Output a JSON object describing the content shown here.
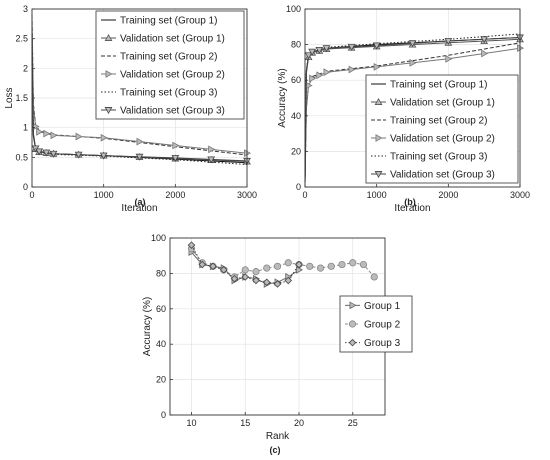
{
  "chart_data": [
    {
      "id": "a",
      "type": "line",
      "caption": "(a)",
      "xlabel": "Iteration",
      "ylabel": "Loss",
      "xlim": [
        0,
        3000
      ],
      "ylim": [
        0,
        3
      ],
      "xticks": [
        0,
        1000,
        2000,
        3000
      ],
      "yticks": [
        0,
        0.5,
        1,
        1.5,
        2,
        2.5,
        3
      ],
      "grid": true,
      "legend": "top-right",
      "series": [
        {
          "name": "Training set (Group 1)",
          "style": "solid",
          "marker": "none",
          "x": [
            0,
            20,
            50,
            100,
            300,
            1000,
            2000,
            3000
          ],
          "y": [
            2.6,
            0.9,
            0.65,
            0.6,
            0.56,
            0.53,
            0.47,
            0.41
          ]
        },
        {
          "name": "Validation set (Group 1)",
          "style": "solid",
          "marker": "triangle-up",
          "x": [
            0,
            20,
            50,
            100,
            300,
            1000,
            2000,
            3000
          ],
          "y": [
            2.5,
            0.85,
            0.64,
            0.59,
            0.56,
            0.53,
            0.48,
            0.43
          ]
        },
        {
          "name": "Training set (Group 2)",
          "style": "dashed",
          "marker": "none",
          "x": [
            0,
            20,
            50,
            100,
            300,
            1000,
            2000,
            3000
          ],
          "y": [
            2.9,
            1.4,
            1.05,
            0.95,
            0.88,
            0.82,
            0.68,
            0.54
          ]
        },
        {
          "name": "Validation set (Group 2)",
          "style": "solid",
          "marker": "triangle-right",
          "x": [
            0,
            20,
            50,
            100,
            300,
            1000,
            2000,
            3000
          ],
          "y": [
            2.8,
            1.35,
            1.02,
            0.93,
            0.87,
            0.83,
            0.7,
            0.57
          ]
        },
        {
          "name": "Training set (Group 3)",
          "style": "dotted",
          "marker": "none",
          "x": [
            0,
            20,
            50,
            100,
            300,
            1000,
            2000,
            3000
          ],
          "y": [
            2.55,
            0.88,
            0.64,
            0.59,
            0.55,
            0.52,
            0.46,
            0.38
          ]
        },
        {
          "name": "Validation set (Group 3)",
          "style": "solid",
          "marker": "triangle-down",
          "x": [
            0,
            20,
            50,
            100,
            300,
            1000,
            2000,
            3000
          ],
          "y": [
            2.45,
            0.86,
            0.65,
            0.6,
            0.56,
            0.53,
            0.49,
            0.44
          ]
        }
      ]
    },
    {
      "id": "b",
      "type": "line",
      "caption": "(b)",
      "xlabel": "Iteration",
      "ylabel": "Accuracy (%)",
      "xlim": [
        0,
        3000
      ],
      "ylim": [
        0,
        100
      ],
      "xticks": [
        0,
        1000,
        2000,
        3000
      ],
      "yticks": [
        0,
        20,
        40,
        60,
        80,
        100
      ],
      "grid": true,
      "legend": "bottom-right",
      "series": [
        {
          "name": "Training set (Group 1)",
          "style": "solid",
          "marker": "none",
          "x": [
            0,
            20,
            50,
            100,
            300,
            1000,
            2000,
            3000
          ],
          "y": [
            2,
            65,
            74,
            76,
            78,
            80,
            82,
            84
          ]
        },
        {
          "name": "Validation set (Group 1)",
          "style": "solid",
          "marker": "triangle-up",
          "x": [
            0,
            20,
            50,
            100,
            300,
            1000,
            2000,
            3000
          ],
          "y": [
            2,
            64,
            73,
            75.5,
            77.5,
            79,
            81,
            83
          ]
        },
        {
          "name": "Training set (Group 2)",
          "style": "dashed",
          "marker": "none",
          "x": [
            0,
            20,
            50,
            100,
            300,
            1000,
            2000,
            3000
          ],
          "y": [
            2,
            45,
            58,
            62,
            65,
            68,
            74,
            81
          ]
        },
        {
          "name": "Validation set (Group 2)",
          "style": "solid",
          "marker": "triangle-right",
          "x": [
            0,
            20,
            50,
            100,
            300,
            1000,
            2000,
            3000
          ],
          "y": [
            2,
            44,
            57,
            61,
            64.5,
            67.5,
            72,
            78
          ]
        },
        {
          "name": "Training set (Group 3)",
          "style": "dotted",
          "marker": "none",
          "x": [
            0,
            20,
            50,
            100,
            300,
            1000,
            2000,
            3000
          ],
          "y": [
            2,
            66,
            75,
            77,
            78.5,
            80.5,
            83,
            86
          ]
        },
        {
          "name": "Validation set (Group 3)",
          "style": "solid",
          "marker": "triangle-down",
          "x": [
            0,
            20,
            50,
            100,
            300,
            1000,
            2000,
            3000
          ],
          "y": [
            2,
            65,
            74,
            76,
            78,
            79.5,
            82,
            84
          ]
        }
      ]
    },
    {
      "id": "c",
      "type": "line",
      "caption": "(c)",
      "xlabel": "Rank",
      "ylabel": "Accuracy (%)",
      "xlim": [
        8,
        28
      ],
      "ylim": [
        0,
        100
      ],
      "xticks": [
        10,
        15,
        20,
        25
      ],
      "yticks": [
        0,
        20,
        40,
        60,
        80,
        100
      ],
      "grid": true,
      "legend": "middle-right",
      "series": [
        {
          "name": "Group 1",
          "style": "solid",
          "marker": "triangle-right",
          "x": [
            10,
            11,
            12,
            13,
            14,
            15,
            16,
            17,
            18,
            19,
            20
          ],
          "y": [
            92,
            85,
            84,
            83,
            76,
            78,
            77,
            74,
            75,
            78,
            82
          ]
        },
        {
          "name": "Group 2",
          "style": "dashed",
          "marker": "circle",
          "x": [
            10,
            11,
            12,
            13,
            14,
            15,
            16,
            17,
            18,
            19,
            20,
            21,
            22,
            23,
            24,
            25,
            26,
            27
          ],
          "y": [
            94,
            86,
            84,
            82,
            78,
            82,
            81,
            83,
            84,
            86,
            85,
            84,
            83,
            84,
            85,
            86,
            85,
            78
          ]
        },
        {
          "name": "Group 3",
          "style": "dotted",
          "marker": "diamond",
          "x": [
            10,
            11,
            12,
            13,
            14,
            15,
            16,
            17,
            18,
            19,
            20
          ],
          "y": [
            96,
            85,
            84,
            82,
            77,
            78,
            76,
            75,
            74,
            76,
            85
          ]
        }
      ]
    }
  ]
}
